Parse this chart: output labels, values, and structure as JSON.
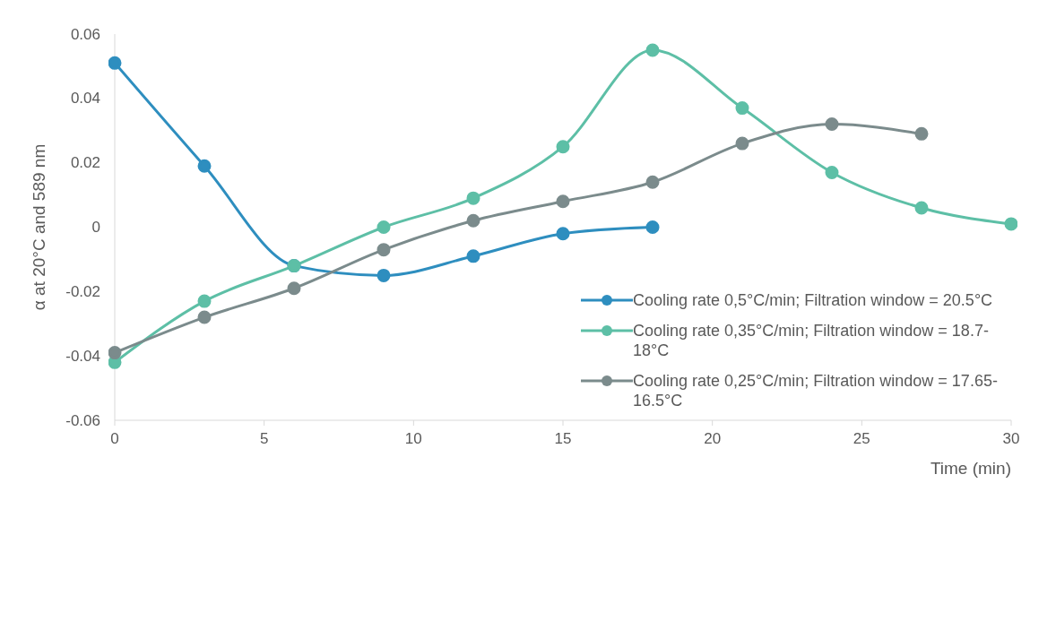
{
  "chart_data": {
    "type": "line",
    "xlabel": "Time (min)",
    "ylabel": "α at 20°C and 589 nm",
    "x": [
      0,
      3,
      6,
      9,
      12,
      15,
      18,
      21,
      24,
      27,
      30
    ],
    "xlim": [
      0,
      30
    ],
    "xticks": [
      0,
      5,
      10,
      15,
      20,
      25,
      30
    ],
    "ylim": [
      -0.06,
      0.06
    ],
    "yticks": [
      {
        "value": -0.06,
        "label": "-0.06"
      },
      {
        "value": -0.04,
        "label": "-0.04"
      },
      {
        "value": -0.02,
        "label": "-0.02"
      },
      {
        "value": 0,
        "label": "0"
      },
      {
        "value": 0.02,
        "label": "0.02"
      },
      {
        "value": 0.04,
        "label": "0.04"
      },
      {
        "value": 0.06,
        "label": "0.06"
      }
    ],
    "grid": false,
    "legend": "bottom right",
    "marker": "circle",
    "line_style": "solid",
    "series": [
      {
        "name": "Cooling rate 0,5°C/min; Filtration window = 20.5°C",
        "color": "#2e8ebf",
        "values": [
          0.051,
          0.019,
          -0.012,
          -0.015,
          -0.009,
          -0.002,
          0,
          null,
          null,
          null,
          null
        ]
      },
      {
        "name": "Cooling rate 0,35°C/min; Filtration window = 18.7-18°C",
        "color": "#5dbfa6",
        "values": [
          -0.042,
          -0.023,
          -0.012,
          0,
          0.009,
          0.025,
          0.055,
          0.037,
          0.017,
          0.006,
          0.001
        ]
      },
      {
        "name": "Cooling rate 0,25°C/min; Filtration window = 17.65-16.5°C",
        "color": "#7b8b8c",
        "values": [
          -0.039,
          -0.028,
          -0.019,
          -0.007,
          0.002,
          0.008,
          0.014,
          0.026,
          0.032,
          0.029,
          null
        ]
      }
    ]
  }
}
